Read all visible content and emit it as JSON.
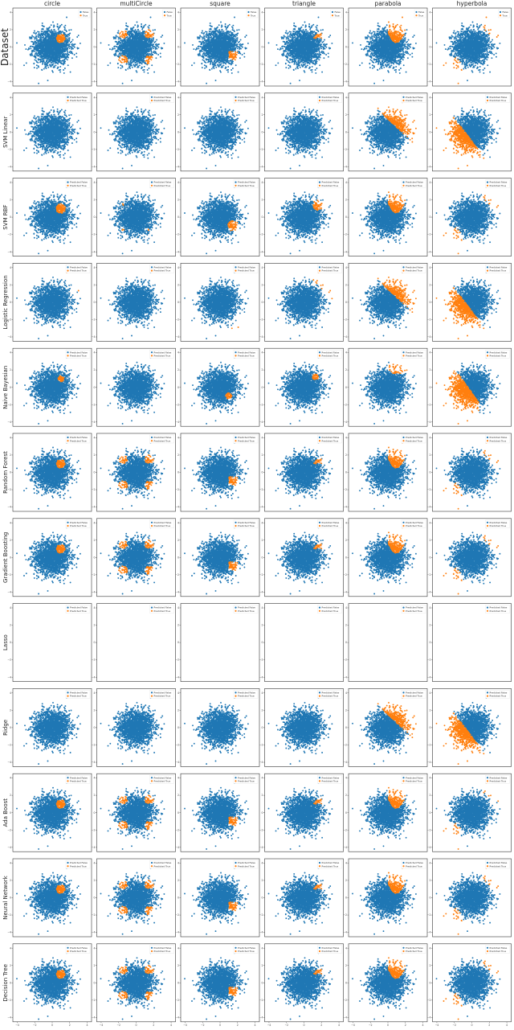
{
  "chart_data": {
    "type": "scatter",
    "columns": [
      "circle",
      "multiCircle",
      "square",
      "triangle",
      "parabola",
      "hyperbola"
    ],
    "rows": [
      "Dataset",
      "SVM Linear",
      "SVM RBF",
      "Logistic Regression",
      "Naive Bayesian",
      "Random Forest",
      "Gradient Boosting",
      "Lasso",
      "Ridge",
      "Ada Boost",
      "Neural Network",
      "Decision Tree"
    ],
    "legend": {
      "dataset": [
        "False",
        "True"
      ],
      "models": [
        "Predicted False",
        "Predicted True"
      ],
      "placement": "top-right"
    },
    "xlim": [
      -4.5,
      4.5
    ],
    "ylim": [
      -4.5,
      4.5
    ],
    "xticks": [
      -4,
      -2,
      0,
      2,
      4
    ],
    "yticks": [
      -4,
      -2,
      0,
      2,
      4
    ],
    "grid": false,
    "colors": {
      "false": "#1f77b4",
      "true": "#ff7f0e"
    },
    "points": 2000,
    "distribution": "standard normal in x and y (clipped to ±4.2)",
    "regions": {
      "circle": "orange disk centred (1.0, 1.0), radius 0.5",
      "multiCircle": "orange disks radius 0.5 at (±1.5, ±1.5)",
      "square": "orange square from (1,-1.5) to (2,-0.5)",
      "triangle": "orange triangle with vertices (1,1), (2,1), (2,2)",
      "parabola": "orange where y > 0.5 + 1.2(x-1)^2, x >= 0",
      "hyperbola": "orange where the point lies outside the hyperbola bands in the upper-right and lower-left quadrants"
    },
    "models": {
      "SVM Linear": "orange only for parabola (y > 1.5 - 0.95x) and hyperbola (y < -1 - 1.3x)",
      "SVM RBF": "smoothed versions of the true regions; multiCircle shows small dots only",
      "Logistic Regression": "linear orange strips near the data edge; none for multiCircle",
      "Naive Bayesian": "smaller orange blobs; none for multiCircle",
      "Random Forest": "matches the true regions",
      "Gradient Boosting": "matches the true regions",
      "Lasso": "no points plotted; legend only",
      "Ridge": "orange only for parabola and hyperbola (linear split)",
      "Ada Boost": "blocky approximation of the true regions",
      "Neural Network": "close to the true regions",
      "Decision Tree": "matches the true regions"
    }
  }
}
